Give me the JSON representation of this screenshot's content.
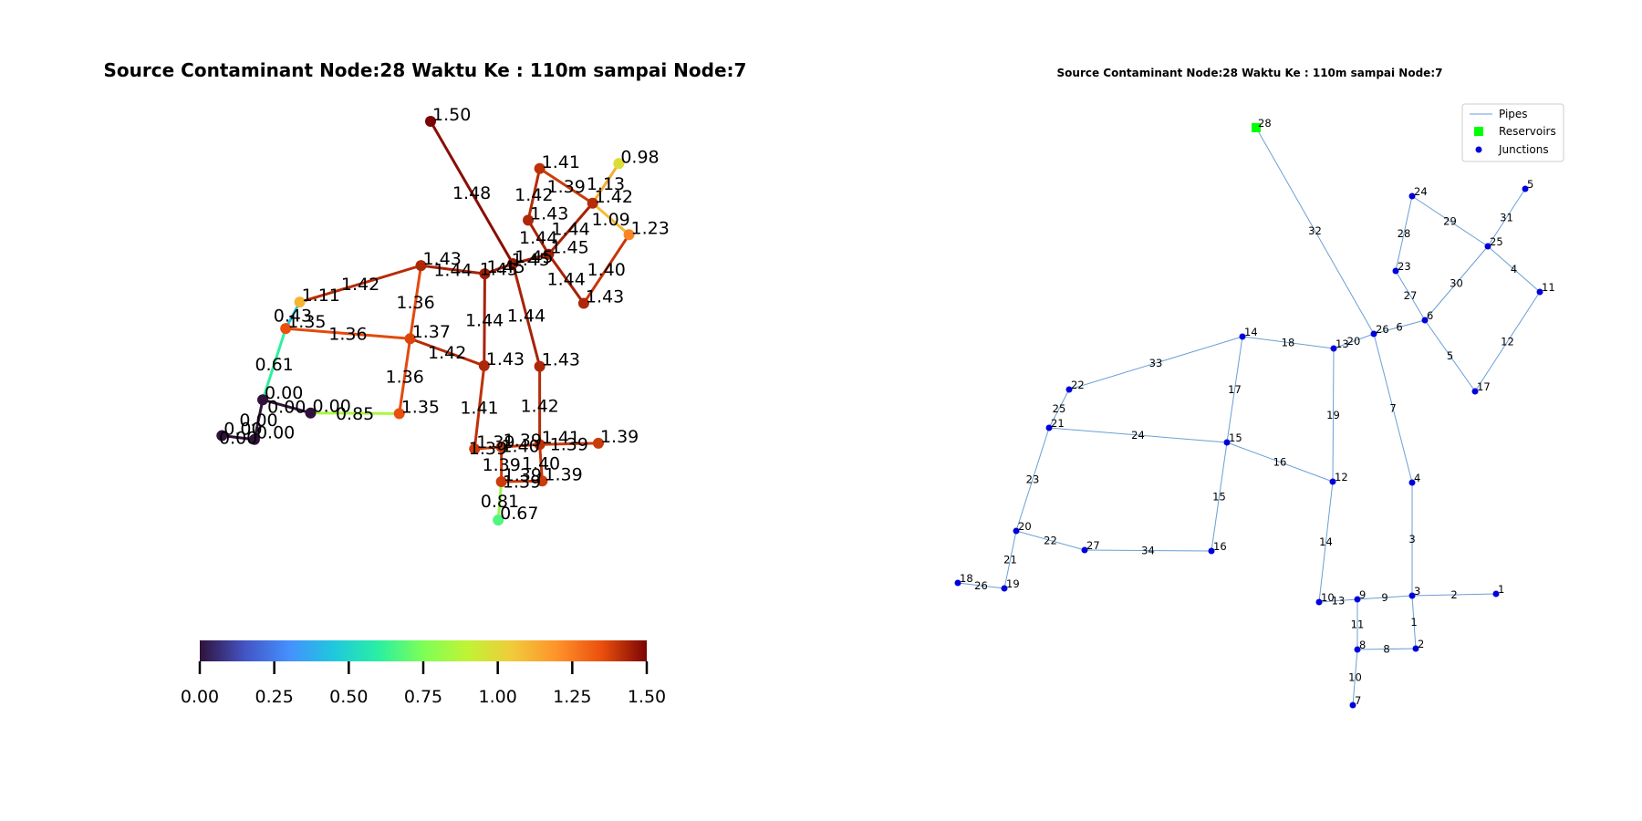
{
  "left_panel": {
    "title": "Source Contaminant Node:28 Waktu Ke : 110m sampai Node:7",
    "colorbar": {
      "min": 0.0,
      "max": 1.5,
      "ticks": [
        "0.00",
        "0.25",
        "0.50",
        "0.75",
        "1.00",
        "1.25",
        "1.50"
      ]
    },
    "nodes": [
      {
        "id": "28",
        "v": 1.5,
        "label": "1.50"
      },
      {
        "id": "24",
        "v": 1.41,
        "label": "1.41"
      },
      {
        "id": "5",
        "v": 0.98,
        "label": "0.98"
      },
      {
        "id": "25",
        "v": 1.42,
        "label": "1.42"
      },
      {
        "id": "11",
        "v": 1.23,
        "label": "1.23"
      },
      {
        "id": "23",
        "v": 1.43,
        "label": "1.43"
      },
      {
        "id": "6",
        "v": 1.45,
        "label": "1.45"
      },
      {
        "id": "26",
        "v": 1.45,
        "label": "1.45"
      },
      {
        "id": "17",
        "v": 1.43,
        "label": "1.43"
      },
      {
        "id": "14",
        "v": 1.43,
        "label": "1.43"
      },
      {
        "id": "13",
        "v": 1.45,
        "label": "1.45"
      },
      {
        "id": "22",
        "v": 1.11,
        "label": "1.11"
      },
      {
        "id": "21",
        "v": 1.35,
        "label": "1.35"
      },
      {
        "id": "15",
        "v": 1.37,
        "label": "1.37"
      },
      {
        "id": "12",
        "v": 1.43,
        "label": "1.43"
      },
      {
        "id": "4",
        "v": 1.43,
        "label": "1.43"
      },
      {
        "id": "20",
        "v": 0.0,
        "label": "0.00"
      },
      {
        "id": "27",
        "v": 0.0,
        "label": "0.00"
      },
      {
        "id": "16",
        "v": 1.35,
        "label": "1.35"
      },
      {
        "id": "18",
        "v": 0.0,
        "label": "0.00"
      },
      {
        "id": "19",
        "v": 0.0,
        "label": "0.00"
      },
      {
        "id": "10",
        "v": 1.39,
        "label": "1.39"
      },
      {
        "id": "9",
        "v": 1.39,
        "label": "1.39"
      },
      {
        "id": "3",
        "v": 1.41,
        "label": "1.41"
      },
      {
        "id": "1",
        "v": 1.39,
        "label": "1.39"
      },
      {
        "id": "8",
        "v": 1.39,
        "label": "1.39"
      },
      {
        "id": "2",
        "v": 1.39,
        "label": "1.39"
      },
      {
        "id": "7",
        "v": 0.67,
        "label": "0.67"
      }
    ],
    "links": [
      {
        "a": "28",
        "b": "26",
        "v": 1.48,
        "label": "1.48"
      },
      {
        "a": "24",
        "b": "25",
        "v": 1.39,
        "label": "1.39"
      },
      {
        "a": "24",
        "b": "23",
        "v": 1.42,
        "label": "1.42"
      },
      {
        "a": "5",
        "b": "25",
        "v": 1.13,
        "label": "1.13"
      },
      {
        "a": "25",
        "b": "11",
        "v": 1.09,
        "label": "1.09"
      },
      {
        "a": "25",
        "b": "6",
        "v": 1.44,
        "label": "1.44"
      },
      {
        "a": "23",
        "b": "6",
        "v": 1.44,
        "label": "1.44"
      },
      {
        "a": "6",
        "b": "26",
        "v": 1.45,
        "label": "1.45"
      },
      {
        "a": "6",
        "b": "17",
        "v": 1.44,
        "label": "1.44"
      },
      {
        "a": "11",
        "b": "17",
        "v": 1.4,
        "label": "1.40"
      },
      {
        "a": "26",
        "b": "13",
        "v": 1.45,
        "label": "1.45"
      },
      {
        "a": "26",
        "b": "4",
        "v": 1.44,
        "label": "1.44"
      },
      {
        "a": "14",
        "b": "13",
        "v": 1.44,
        "label": "1.44"
      },
      {
        "a": "14",
        "b": "22",
        "v": 1.42,
        "label": "1.42"
      },
      {
        "a": "14",
        "b": "15",
        "v": 1.36,
        "label": "1.36"
      },
      {
        "a": "13",
        "b": "12",
        "v": 1.44,
        "label": "1.44"
      },
      {
        "a": "22",
        "b": "21",
        "v": 0.43,
        "label": "0.43"
      },
      {
        "a": "21",
        "b": "15",
        "v": 1.36,
        "label": "1.36"
      },
      {
        "a": "21",
        "b": "20",
        "v": 0.61,
        "label": "0.61"
      },
      {
        "a": "15",
        "b": "12",
        "v": 1.42,
        "label": "1.42"
      },
      {
        "a": "15",
        "b": "16",
        "v": 1.36,
        "label": "1.36"
      },
      {
        "a": "20",
        "b": "27",
        "v": 0.0,
        "label": "0.00"
      },
      {
        "a": "20",
        "b": "19",
        "v": 0.0,
        "label": "0.00"
      },
      {
        "a": "27",
        "b": "16",
        "v": 0.85,
        "label": "0.85"
      },
      {
        "a": "18",
        "b": "19",
        "v": 0.0,
        "label": "0.00"
      },
      {
        "a": "12",
        "b": "10",
        "v": 1.41,
        "label": "1.41"
      },
      {
        "a": "4",
        "b": "3",
        "v": 1.42,
        "label": "1.42"
      },
      {
        "a": "10",
        "b": "9",
        "v": 1.39,
        "label": "1.39"
      },
      {
        "a": "9",
        "b": "3",
        "v": 1.4,
        "label": "1.40"
      },
      {
        "a": "3",
        "b": "1",
        "v": 1.39,
        "label": "1.39"
      },
      {
        "a": "9",
        "b": "8",
        "v": 1.39,
        "label": "1.39"
      },
      {
        "a": "3",
        "b": "2",
        "v": 1.4,
        "label": "1.40"
      },
      {
        "a": "8",
        "b": "2",
        "v": 1.39,
        "label": "1.39"
      },
      {
        "a": "8",
        "b": "7",
        "v": 0.81,
        "label": "0.81"
      }
    ]
  },
  "right_panel": {
    "title": "Source Contaminant Node:28 Waktu Ke : 110m sampai Node:7",
    "legend": {
      "items": [
        "Pipes",
        "Reservoirs",
        "Junctions"
      ],
      "placement": "top-right"
    },
    "colors": {
      "pipe": "#6a9fd4",
      "reservoir": "#00ff00",
      "junction": "#0000dd"
    },
    "reservoirs": [
      "28"
    ],
    "junctions": [
      "24",
      "5",
      "25",
      "11",
      "23",
      "6",
      "26",
      "17",
      "14",
      "13",
      "22",
      "21",
      "15",
      "12",
      "4",
      "20",
      "27",
      "16",
      "18",
      "19",
      "10",
      "9",
      "3",
      "1",
      "8",
      "2",
      "7"
    ],
    "pipes": [
      {
        "id": "32",
        "a": "28",
        "b": "26"
      },
      {
        "id": "29",
        "a": "24",
        "b": "25"
      },
      {
        "id": "28",
        "a": "24",
        "b": "23"
      },
      {
        "id": "31",
        "a": "5",
        "b": "25"
      },
      {
        "id": "4",
        "a": "25",
        "b": "11"
      },
      {
        "id": "30",
        "a": "25",
        "b": "6"
      },
      {
        "id": "27",
        "a": "23",
        "b": "6"
      },
      {
        "id": "6",
        "a": "6",
        "b": "26"
      },
      {
        "id": "5",
        "a": "6",
        "b": "17"
      },
      {
        "id": "12",
        "a": "11",
        "b": "17"
      },
      {
        "id": "20",
        "a": "26",
        "b": "13"
      },
      {
        "id": "7",
        "a": "26",
        "b": "4"
      },
      {
        "id": "18",
        "a": "14",
        "b": "13"
      },
      {
        "id": "33",
        "a": "14",
        "b": "22"
      },
      {
        "id": "17",
        "a": "14",
        "b": "15"
      },
      {
        "id": "19",
        "a": "13",
        "b": "12"
      },
      {
        "id": "25",
        "a": "22",
        "b": "21"
      },
      {
        "id": "24",
        "a": "21",
        "b": "15"
      },
      {
        "id": "23",
        "a": "21",
        "b": "20"
      },
      {
        "id": "16",
        "a": "15",
        "b": "12"
      },
      {
        "id": "15",
        "a": "15",
        "b": "16"
      },
      {
        "id": "22",
        "a": "20",
        "b": "27"
      },
      {
        "id": "21",
        "a": "20",
        "b": "19"
      },
      {
        "id": "34",
        "a": "27",
        "b": "16"
      },
      {
        "id": "26",
        "a": "18",
        "b": "19"
      },
      {
        "id": "14",
        "a": "12",
        "b": "10"
      },
      {
        "id": "3",
        "a": "4",
        "b": "3"
      },
      {
        "id": "13",
        "a": "10",
        "b": "9"
      },
      {
        "id": "9",
        "a": "9",
        "b": "3"
      },
      {
        "id": "2",
        "a": "3",
        "b": "1"
      },
      {
        "id": "11",
        "a": "9",
        "b": "8"
      },
      {
        "id": "1",
        "a": "3",
        "b": "2"
      },
      {
        "id": "8",
        "a": "8",
        "b": "2"
      },
      {
        "id": "10",
        "a": "8",
        "b": "7"
      }
    ]
  }
}
